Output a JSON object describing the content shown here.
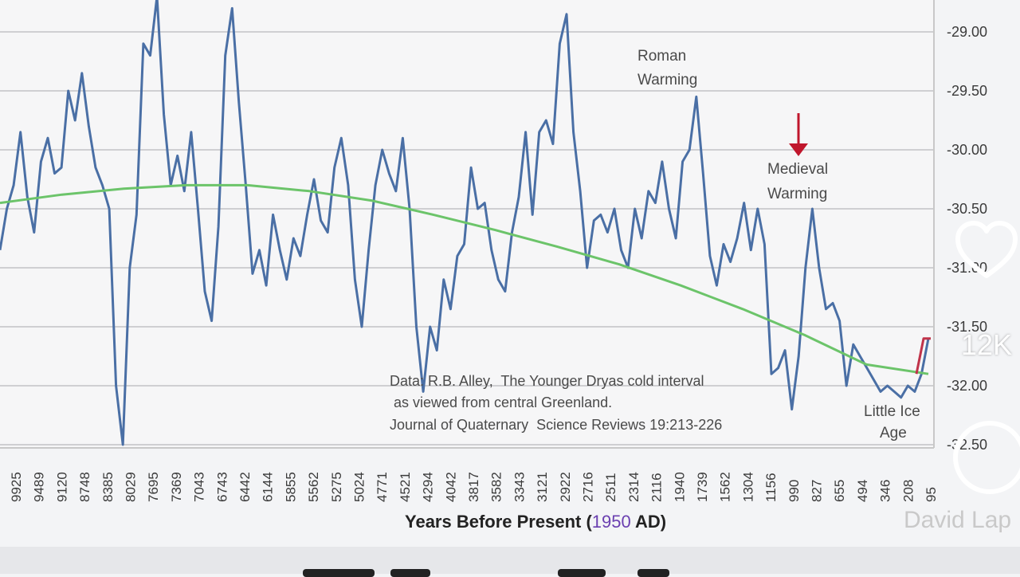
{
  "chart_data": {
    "type": "line",
    "xlabel_parts": [
      "Years Before Present (",
      "1950",
      " AD)"
    ],
    "x_ticks": [
      "9925",
      "9489",
      "9120",
      "8748",
      "8385",
      "8029",
      "7695",
      "7369",
      "7043",
      "6743",
      "6442",
      "6144",
      "5855",
      "5562",
      "5275",
      "5024",
      "4771",
      "4521",
      "4294",
      "4042",
      "3817",
      "3582",
      "3343",
      "3121",
      "2922",
      "2716",
      "2511",
      "2314",
      "2116",
      "1940",
      "1739",
      "1562",
      "1304",
      "1156",
      "990",
      "827",
      "655",
      "494",
      "346",
      "208",
      "95"
    ],
    "y_ticks": [
      "-29.00",
      "-29.50",
      "-30.00",
      "-30.50",
      "-31.00",
      "-31.50",
      "-32.00",
      "-32.50"
    ],
    "ylim": [
      -32.5,
      -28.75
    ],
    "grid": true,
    "series": [
      {
        "color": "#4a6fa5",
        "values": [
          -30.85,
          -30.5,
          -30.3,
          -29.85,
          -30.4,
          -30.7,
          -30.1,
          -29.9,
          -30.2,
          -30.15,
          -29.5,
          -29.75,
          -29.35,
          -29.8,
          -30.15,
          -30.3,
          -30.5,
          -32.0,
          -32.5,
          -31.0,
          -30.55,
          -29.1,
          -29.2,
          -28.7,
          -29.7,
          -30.3,
          -30.05,
          -30.35,
          -29.85,
          -30.5,
          -31.2,
          -31.45,
          -30.65,
          -29.2,
          -28.8,
          -29.6,
          -30.3,
          -31.05,
          -30.85,
          -31.15,
          -30.55,
          -30.85,
          -31.1,
          -30.75,
          -30.9,
          -30.55,
          -30.25,
          -30.6,
          -30.7,
          -30.15,
          -29.9,
          -30.3,
          -31.1,
          -31.5,
          -30.85,
          -30.3,
          -30.0,
          -30.2,
          -30.35,
          -29.9,
          -30.5,
          -31.5,
          -32.05,
          -31.5,
          -31.7,
          -31.1,
          -31.35,
          -30.9,
          -30.8,
          -30.15,
          -30.5,
          -30.45,
          -30.85,
          -31.1,
          -31.2,
          -30.7,
          -30.4,
          -29.85,
          -30.55,
          -29.85,
          -29.75,
          -29.95,
          -29.1,
          -28.85,
          -29.85,
          -30.35,
          -31.0,
          -30.6,
          -30.55,
          -30.7,
          -30.5,
          -30.85,
          -31.0,
          -30.5,
          -30.75,
          -30.35,
          -30.45,
          -30.1,
          -30.5,
          -30.75,
          -30.1,
          -30.0,
          -29.55,
          -30.2,
          -30.9,
          -31.15,
          -30.8,
          -30.95,
          -30.75,
          -30.45,
          -30.85,
          -30.5,
          -30.8,
          -31.9,
          -31.85,
          -31.7,
          -32.2,
          -31.75,
          -31.0,
          -30.5,
          -31.0,
          -31.35,
          -31.3,
          -31.45,
          -32.0,
          -31.65,
          -31.75,
          -31.85,
          -31.95,
          -32.05,
          -32.0,
          -32.05,
          -32.1,
          -32.0,
          -32.05,
          -31.9,
          -31.6
        ]
      },
      {
        "color": "#6cc46a",
        "values": [
          -30.45,
          -30.38,
          -30.33,
          -30.3,
          -30.3,
          -30.35,
          -30.43,
          -30.55,
          -30.68,
          -30.82,
          -30.97,
          -31.15,
          -31.35,
          -31.57,
          -31.82,
          -31.9
        ]
      },
      {
        "color": "#c0334a",
        "values": [
          -31.9,
          -31.6,
          -31.6
        ]
      }
    ],
    "annotations": [
      {
        "lines": [
          "Roman",
          "Warming"
        ]
      },
      {
        "lines": [
          "Medieval",
          "Warming"
        ]
      },
      {
        "lines": [
          "Little Ice",
          "Age"
        ]
      },
      {
        "lines": [
          "Data: R.B. Alley,  The Younger Dryas cold interval",
          " as viewed from central Greenland.",
          "Journal of Quaternary  Science Reviews 19:213-226"
        ]
      }
    ]
  },
  "overlay": {
    "like_count": "12K",
    "author": "David Lap",
    "icons": [
      "heart-icon",
      "comment-icon"
    ]
  }
}
